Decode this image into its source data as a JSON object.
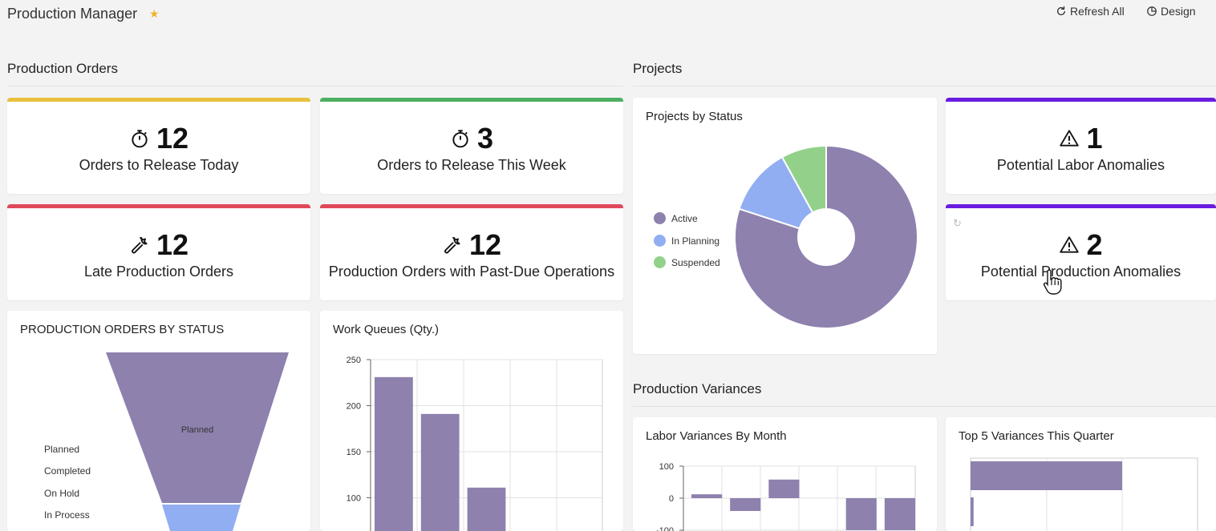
{
  "header": {
    "title": "Production Manager",
    "star_icon": "star-icon",
    "refresh_label": "Refresh All",
    "design_label": "Design"
  },
  "sections": {
    "production_orders": "Production Orders",
    "projects": "Projects",
    "production_variances": "Production Variances"
  },
  "kpis": [
    {
      "value": "12",
      "label": "Orders to Release Today",
      "icon": "stopwatch-icon",
      "accent": "#e8c13e"
    },
    {
      "value": "3",
      "label": "Orders to Release This Week",
      "icon": "stopwatch-icon",
      "accent": "#4caf62"
    },
    {
      "value": "12",
      "label": "Late Production Orders",
      "icon": "wrench-icon",
      "accent": "#e0485a"
    },
    {
      "value": "12",
      "label": "Production Orders with Past-Due Operations",
      "icon": "wrench-icon",
      "accent": "#e0485a"
    },
    {
      "value": "1",
      "label": "Potential Labor Anomalies",
      "icon": "warning-icon",
      "accent": "#6a1be0"
    },
    {
      "value": "2",
      "label": "Potential Production Anomalies",
      "icon": "warning-icon",
      "accent": "#6a1be0"
    }
  ],
  "colors": {
    "series_purple": "#8e81ae",
    "series_blue": "#92aef2",
    "series_green": "#93d18b"
  },
  "chart_data": [
    {
      "type": "funnel",
      "title": "PRODUCTION ORDERS BY STATUS",
      "categories": [
        "Planned",
        "Completed",
        "On Hold",
        "In Process"
      ],
      "stage_labels": [
        "Planned"
      ],
      "values": [
        100,
        12,
        null,
        null
      ],
      "legend": "left"
    },
    {
      "type": "bar",
      "title": "Work Queues (Qty.)",
      "values": [
        231,
        191,
        111
      ],
      "ylim": [
        50,
        250
      ],
      "yticks": [
        100,
        150,
        200,
        250
      ],
      "grid": true
    },
    {
      "type": "pie",
      "title": "Projects by Status",
      "donut": true,
      "categories": [
        "Active",
        "In Planning",
        "Suspended"
      ],
      "values": [
        80,
        12,
        8
      ],
      "legend": "left"
    },
    {
      "type": "bar",
      "title": "Labor Variances By Month",
      "values": [
        12,
        -40,
        58,
        0,
        -100,
        -100
      ],
      "ylim": [
        -100,
        100
      ],
      "yticks": [
        100,
        0,
        -100
      ],
      "grid": true
    },
    {
      "type": "bar",
      "orientation": "horizontal",
      "title": "Top 5 Variances This Quarter",
      "values": [
        100,
        2
      ],
      "grid": true
    }
  ]
}
